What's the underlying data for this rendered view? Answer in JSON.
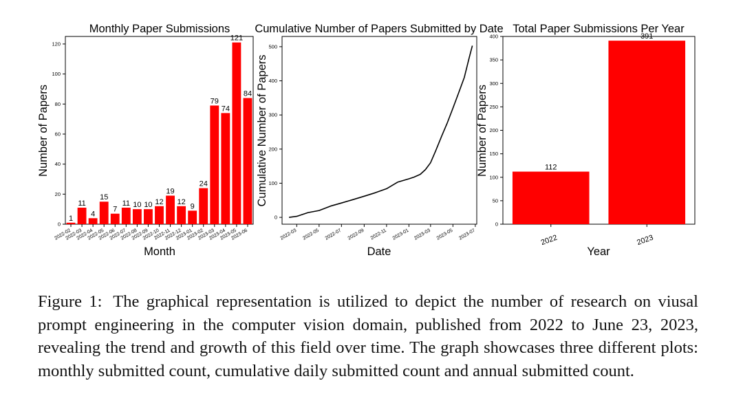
{
  "colors": {
    "bar": "#ff0000",
    "line": "#000000",
    "axis": "#000000",
    "text": "#000000"
  },
  "chart_data": [
    {
      "type": "bar",
      "title": "Monthly Paper Submissions",
      "xlabel": "Month",
      "ylabel": "Number of Papers",
      "categories": [
        "2022-02",
        "2022-03",
        "2022-04",
        "2022-05",
        "2022-06",
        "2022-07",
        "2022-08",
        "2022-09",
        "2022-10",
        "2022-11",
        "2022-12",
        "2023-01",
        "2023-02",
        "2023-03",
        "2023-04",
        "2023-05",
        "2023-06"
      ],
      "values": [
        1,
        11,
        4,
        15,
        7,
        11,
        10,
        10,
        12,
        19,
        12,
        9,
        24,
        79,
        74,
        121,
        84
      ],
      "ylim": [
        0,
        125
      ],
      "yticks": [
        0,
        20,
        40,
        60,
        80,
        100,
        120
      ],
      "grid": false,
      "data_labels": true
    },
    {
      "type": "line",
      "title": "Cumulative Number of Papers Submitted by Date",
      "xlabel": "Date",
      "ylabel": "Cumulative Number of Papers",
      "xlim": [
        "2022-01-20",
        "2023-07-05"
      ],
      "ylim": [
        -20,
        530
      ],
      "yticks": [
        0,
        100,
        200,
        300,
        400,
        500
      ],
      "xticks": [
        "2022-03",
        "2022-05",
        "2022-07",
        "2022-09",
        "2022-11",
        "2023-01",
        "2023-03",
        "2023-05",
        "2023-07"
      ],
      "x": [
        "2022-02-08",
        "2022-03-01",
        "2022-04-01",
        "2022-05-01",
        "2022-06-01",
        "2022-07-01",
        "2022-08-01",
        "2022-09-01",
        "2022-10-01",
        "2022-11-01",
        "2022-12-01",
        "2023-01-01",
        "2023-01-15",
        "2023-02-01",
        "2023-02-15",
        "2023-03-01",
        "2023-03-15",
        "2023-04-01",
        "2023-04-15",
        "2023-05-01",
        "2023-05-15",
        "2023-06-01",
        "2023-06-15",
        "2023-06-23"
      ],
      "y": [
        0,
        3,
        14,
        20,
        33,
        42,
        52,
        62,
        72,
        84,
        103,
        113,
        118,
        126,
        140,
        160,
        195,
        240,
        275,
        320,
        360,
        410,
        470,
        503
      ],
      "grid": false
    },
    {
      "type": "bar",
      "title": "Total Paper Submissions Per Year",
      "xlabel": "Year",
      "ylabel": "Number of Papers",
      "categories": [
        "2022",
        "2023"
      ],
      "values": [
        112,
        391
      ],
      "ylim": [
        0,
        400
      ],
      "yticks": [
        0,
        50,
        100,
        150,
        200,
        250,
        300,
        350,
        400
      ],
      "grid": false,
      "data_labels": true
    }
  ],
  "caption": {
    "label": "Figure 1:",
    "text": "The graphical representation is utilized to depict the number of research on viusal prompt engineering in the computer vision domain, published from 2022 to June 23, 2023, revealing the trend and growth of this field over time. The graph showcases three different plots: monthly submitted count, cumulative daily submitted count and annual submitted count."
  }
}
